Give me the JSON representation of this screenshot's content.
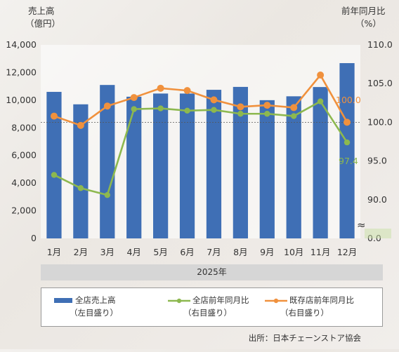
{
  "chart_data": {
    "type": "bar+line",
    "categories": [
      "1月",
      "2月",
      "3月",
      "4月",
      "5月",
      "6月",
      "7月",
      "8月",
      "9月",
      "10月",
      "11月",
      "12月"
    ],
    "left_axis": {
      "label_line1": "売上高",
      "label_line2": "（億円）",
      "min": 0,
      "max": 14000,
      "ticks": [
        "0",
        "2,000",
        "4,000",
        "6,000",
        "8,000",
        "10,000",
        "12,000",
        "14,000"
      ]
    },
    "right_axis": {
      "label_line1": "前年同月比",
      "label_line2": "（%）",
      "ticks": [
        "0.0",
        "90.0",
        "95.0",
        "100.0",
        "105.0",
        "110.0"
      ],
      "break_symbol": "≈",
      "scale_min": 85,
      "scale_max": 110
    },
    "series": [
      {
        "name": "全店売上高",
        "sub": "（左目盛り）",
        "axis": "left",
        "kind": "bar",
        "color": "#3f6fb5",
        "values": [
          10600,
          9700,
          11100,
          10250,
          10480,
          10480,
          10750,
          10960,
          10000,
          10280,
          10950,
          12680
        ]
      },
      {
        "name": "全店前年同月比",
        "sub": "（右目盛り）",
        "axis": "right",
        "kind": "line",
        "color": "#8db84f",
        "values": [
          93.2,
          91.5,
          90.6,
          101.7,
          101.8,
          101.5,
          101.6,
          101.1,
          101.1,
          100.8,
          102.7,
          97.4
        ]
      },
      {
        "name": "既存店前年同月比",
        "sub": "（右目盛り）",
        "axis": "right",
        "kind": "line",
        "color": "#f0913d",
        "values": [
          100.8,
          99.6,
          102.1,
          103.2,
          104.4,
          104.1,
          102.9,
          102.0,
          102.2,
          101.9,
          106.1,
          100.0
        ]
      }
    ],
    "point_labels": {
      "last_existing": "100.0",
      "last_all": "97.4"
    },
    "reference_line_value": 100,
    "xlabel": "2025年",
    "grid": false,
    "legend_position": "bottom"
  },
  "source": "出所：日本チェーンストア協会"
}
